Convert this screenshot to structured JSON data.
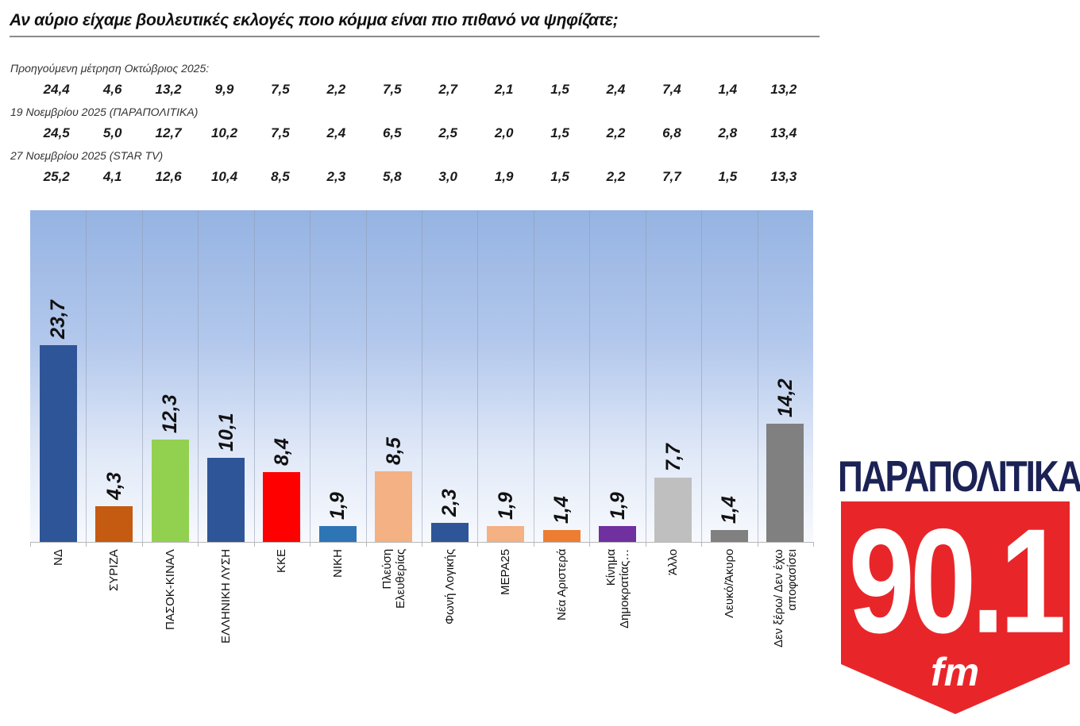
{
  "title": "Αν αύριο είχαμε βουλευτικές εκλογές ποιο κόμμα είναι πιο πιθανό να ψηφίζατε;",
  "previous_measurements": [
    {
      "label": "Προηγούμενη μέτρηση Οκτώβριος 2025:",
      "values": [
        "24,4",
        "4,6",
        "13,2",
        "9,9",
        "7,5",
        "2,2",
        "7,5",
        "2,7",
        "2,1",
        "1,5",
        "2,4",
        "7,4",
        "1,4",
        "13,2"
      ]
    },
    {
      "label": "19 Νοεμβρίου 2025 (ΠΑΡΑΠΟΛΙΤΙΚΑ)",
      "values": [
        "24,5",
        "5,0",
        "12,7",
        "10,2",
        "7,5",
        "2,4",
        "6,5",
        "2,5",
        "2,0",
        "1,5",
        "2,2",
        "6,8",
        "2,8",
        "13,4"
      ]
    },
    {
      "label": "27 Νοεμβρίου 2025 (STAR TV)",
      "values": [
        "25,2",
        "4,1",
        "12,6",
        "10,4",
        "8,5",
        "2,3",
        "5,8",
        "3,0",
        "1,9",
        "1,5",
        "2,2",
        "7,7",
        "1,5",
        "13,3"
      ]
    }
  ],
  "bars": [
    {
      "label": "ΝΔ",
      "label2": "",
      "value": 23.7,
      "display": "23,7",
      "color": "#2e5597"
    },
    {
      "label": "ΣΥΡΙΖΑ",
      "label2": "",
      "value": 4.3,
      "display": "4,3",
      "color": "#c55a11"
    },
    {
      "label": "ΠΑΣΟΚ-ΚΙΝΑΛ",
      "label2": "",
      "value": 12.3,
      "display": "12,3",
      "color": "#92d050"
    },
    {
      "label": "ΕΛΛΗΝΙΚΗ ΛΥΣΗ",
      "label2": "",
      "value": 10.1,
      "display": "10,1",
      "color": "#2e5597"
    },
    {
      "label": "ΚΚΕ",
      "label2": "",
      "value": 8.4,
      "display": "8,4",
      "color": "#ff0000"
    },
    {
      "label": "ΝΙΚΗ",
      "label2": "",
      "value": 1.9,
      "display": "1,9",
      "color": "#2e75b6"
    },
    {
      "label": "Πλεύση",
      "label2": "Ελευθερίας",
      "value": 8.5,
      "display": "8,5",
      "color": "#f4b183"
    },
    {
      "label": "Φωνή Λογικής",
      "label2": "",
      "value": 2.3,
      "display": "2,3",
      "color": "#2e5597"
    },
    {
      "label": "ΜΕΡΑ25",
      "label2": "",
      "value": 1.9,
      "display": "1,9",
      "color": "#f4b183"
    },
    {
      "label": "Νέα Αριστερά",
      "label2": "",
      "value": 1.4,
      "display": "1,4",
      "color": "#ed7d31"
    },
    {
      "label": "Κίνημα",
      "label2": "Δημοκρατίας…",
      "value": 1.9,
      "display": "1,9",
      "color": "#7030a0"
    },
    {
      "label": "Άλλο",
      "label2": "",
      "value": 7.7,
      "display": "7,7",
      "color": "#bfbfbf"
    },
    {
      "label": "Λευκό/Άκυρο",
      "label2": "",
      "value": 1.4,
      "display": "1,4",
      "color": "#808080"
    },
    {
      "label": "Δεν ξέρω/ Δεν έχω",
      "label2": "αποφασίσει",
      "value": 14.2,
      "display": "14,2",
      "color": "#808080"
    }
  ],
  "chart_data": {
    "type": "bar",
    "title": "Αν αύριο είχαμε βουλευτικές εκλογές ποιο κόμμα είναι πιο πιθανό να ψηφίζατε;",
    "xlabel": "",
    "ylabel": "",
    "categories": [
      "ΝΔ",
      "ΣΥΡΙΖΑ",
      "ΠΑΣΟΚ-ΚΙΝΑΛ",
      "ΕΛΛΗΝΙΚΗ ΛΥΣΗ",
      "ΚΚΕ",
      "ΝΙΚΗ",
      "Πλεύση Ελευθερίας",
      "Φωνή Λογικής",
      "ΜΕΡΑ25",
      "Νέα Αριστερά",
      "Κίνημα Δημοκρατίας…",
      "Άλλο",
      "Λευκό/Άκυρο",
      "Δεν ξέρω/ Δεν έχω αποφασίσει"
    ],
    "values": [
      23.7,
      4.3,
      12.3,
      10.1,
      8.4,
      1.9,
      8.5,
      2.3,
      1.9,
      1.4,
      1.9,
      7.7,
      1.4,
      14.2
    ],
    "comparison_series": [
      {
        "name": "Προηγούμενη μέτρηση Οκτώβριος 2025",
        "values": [
          24.4,
          4.6,
          13.2,
          9.9,
          7.5,
          2.2,
          7.5,
          2.7,
          2.1,
          1.5,
          2.4,
          7.4,
          1.4,
          13.2
        ]
      },
      {
        "name": "19 Νοεμβρίου 2025 (ΠΑΡΑΠΟΛΙΤΙΚΑ)",
        "values": [
          24.5,
          5.0,
          12.7,
          10.2,
          7.5,
          2.4,
          6.5,
          2.5,
          2.0,
          1.5,
          2.2,
          6.8,
          2.8,
          13.4
        ]
      },
      {
        "name": "27 Νοεμβρίου 2025 (STAR TV)",
        "values": [
          25.2,
          4.1,
          12.6,
          10.4,
          8.5,
          2.3,
          5.8,
          3.0,
          1.9,
          1.5,
          2.2,
          7.7,
          1.5,
          13.3
        ]
      }
    ],
    "data_labels": true,
    "grid": "vertical category separators",
    "legend": "none",
    "ylim": [
      0,
      40
    ]
  },
  "logo": {
    "top_text": "ΠΑΡΑΠΟΛΙΤΙΚΑ",
    "number": "90.1",
    "suffix": "fm",
    "colors": {
      "navy": "#1b2255",
      "red": "#e8262a"
    }
  }
}
